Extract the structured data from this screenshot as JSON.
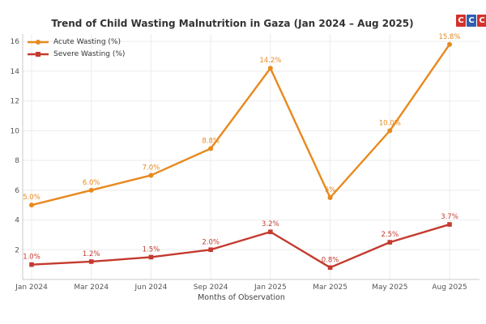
{
  "chart_data": {
    "type": "line",
    "title": "Trend of Child Wasting Malnutrition in Gaza (Jan 2024 – Aug 2025)",
    "xlabel": "Months of Observation",
    "ylabel": "",
    "x": [
      "Jan 2024",
      "Mar 2024",
      "Jun 2024",
      "Sep 2024",
      "Jan 2025",
      "Mar 2025",
      "May 2025",
      "Aug 2025"
    ],
    "ylim": [
      0,
      16.5
    ],
    "yticks": [
      2,
      4,
      6,
      8,
      10,
      12,
      14,
      16
    ],
    "grid": true,
    "legend_position": "upper left",
    "series": [
      {
        "name": "Acute Wasting (%)",
        "color": "#E8891D",
        "marker": "circle",
        "values": [
          5.0,
          6.0,
          7.0,
          8.8,
          14.2,
          5.5,
          10.0,
          15.8
        ],
        "point_labels": [
          "5.0%",
          "6.0%",
          "7.0%",
          "8.8%",
          "14.2%",
          "5%",
          "10.0%",
          "15.8%"
        ]
      },
      {
        "name": "Severe Wasting (%)",
        "color": "#C43A2F",
        "marker": "square",
        "values": [
          1.0,
          1.2,
          1.5,
          2.0,
          3.2,
          0.8,
          2.5,
          3.7
        ],
        "point_labels": [
          "1.0%",
          "1.2%",
          "1.5%",
          "2.0%",
          "3.2%",
          "0.8%",
          "2.5%",
          "3.7%"
        ]
      }
    ]
  },
  "logo": {
    "letters": [
      "C",
      "C",
      "C"
    ],
    "colors": [
      "#D3312C",
      "#2F5FAE",
      "#D3312C"
    ]
  }
}
